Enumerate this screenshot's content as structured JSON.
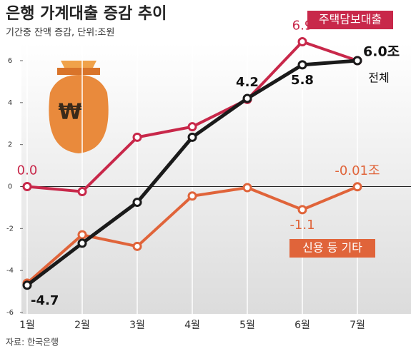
{
  "chart_data": {
    "type": "line",
    "title": "은행 가계대출 증감 추이",
    "subtitle": "기간중 잔액 증감, 단위:조원",
    "source": "자료: 한국은행",
    "categories": [
      "1월",
      "2월",
      "3월",
      "4월",
      "5월",
      "6월",
      "7월"
    ],
    "series": [
      {
        "name": "주택담보대출",
        "color": "#c8284a",
        "values": [
          0.0,
          -0.24,
          2.35,
          2.85,
          4.15,
          6.9,
          6.0
        ],
        "value_labels": [
          "0.0",
          null,
          null,
          null,
          null,
          "6.9",
          null
        ]
      },
      {
        "name": "신용 등 기타",
        "color": "#e0643a",
        "values": [
          -4.6,
          -2.3,
          -2.85,
          -0.45,
          -0.05,
          -1.1,
          -0.01
        ],
        "value_labels": [
          null,
          null,
          null,
          null,
          null,
          "-1.1",
          "-0.01조"
        ]
      },
      {
        "name": "전체",
        "color": "#1a1a1a",
        "values": [
          -4.7,
          -2.7,
          -0.75,
          2.35,
          4.2,
          5.8,
          6.0
        ],
        "value_labels": [
          "-4.7",
          null,
          null,
          null,
          "4.2",
          "5.8",
          "6.0조"
        ]
      }
    ],
    "ylim": [
      -6,
      6
    ],
    "yticks": [
      6,
      4,
      2,
      0,
      -2,
      -4,
      -6
    ],
    "grid": true
  }
}
